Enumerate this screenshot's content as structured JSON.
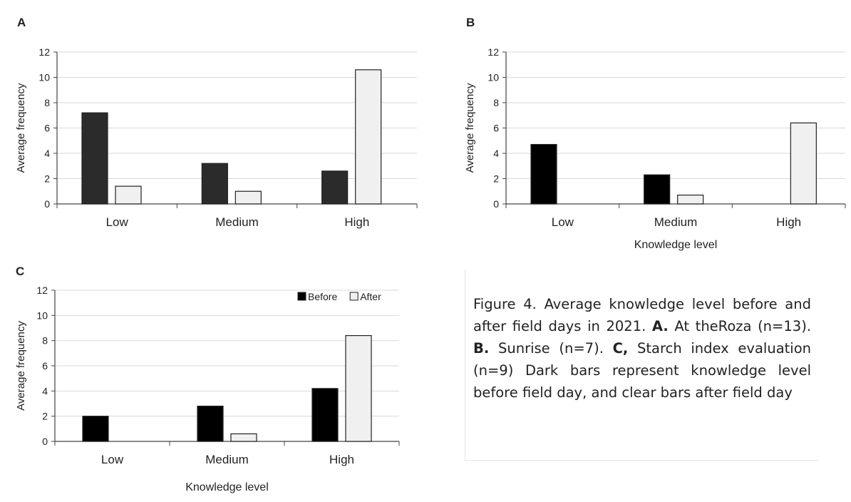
{
  "chart_data": [
    {
      "type": "bar",
      "panel_label": "A",
      "categories": [
        "Low",
        "Medium",
        "High"
      ],
      "series": [
        {
          "values": [
            7.2,
            3.2,
            2.6
          ],
          "color": "#2b2b2b"
        },
        {
          "values": [
            1.4,
            1.0,
            10.6
          ],
          "color": "#f0f0f0"
        }
      ],
      "ylabel": "Average frequency",
      "xlabel": "",
      "ylim": [
        0,
        12
      ],
      "yticks": [
        0,
        2,
        4,
        6,
        8,
        10,
        12
      ],
      "grid": true,
      "legend": null
    },
    {
      "type": "bar",
      "panel_label": "B",
      "categories": [
        "Low",
        "Medium",
        "High"
      ],
      "series": [
        {
          "values": [
            4.7,
            2.3,
            0
          ],
          "color": "#000000"
        },
        {
          "values": [
            0,
            0.7,
            6.4
          ],
          "color": "#f0f0f0"
        }
      ],
      "ylabel": "Average frequency",
      "xlabel": "Knowledge level",
      "ylim": [
        0,
        12
      ],
      "yticks": [
        0,
        2,
        4,
        6,
        8,
        10,
        12
      ],
      "grid": true,
      "legend": null
    },
    {
      "type": "bar",
      "panel_label": "C",
      "categories": [
        "Low",
        "Medium",
        "High"
      ],
      "series": [
        {
          "name": "Before",
          "values": [
            2.0,
            2.8,
            4.2
          ],
          "color": "#000000"
        },
        {
          "name": "After",
          "values": [
            0,
            0.6,
            8.4
          ],
          "color": "#f0f0f0"
        }
      ],
      "ylabel": "Average frequency",
      "xlabel": "Knowledge level",
      "ylim": [
        0,
        12
      ],
      "yticks": [
        0,
        2,
        4,
        6,
        8,
        10,
        12
      ],
      "grid": true,
      "legend": "top-right"
    }
  ],
  "caption": {
    "intro": "Figure 4. Average knowledge level before and after field days in 2021. ",
    "label_a": "A.",
    "text_a": " At theRoza (n=13). ",
    "label_b": "B.",
    "text_b": " Sunrise (n=7). ",
    "label_c": "C,",
    "text_c": " Starch index evaluation (n=9) Dark bars represent knowledge level before field day, and clear bars after field day"
  }
}
